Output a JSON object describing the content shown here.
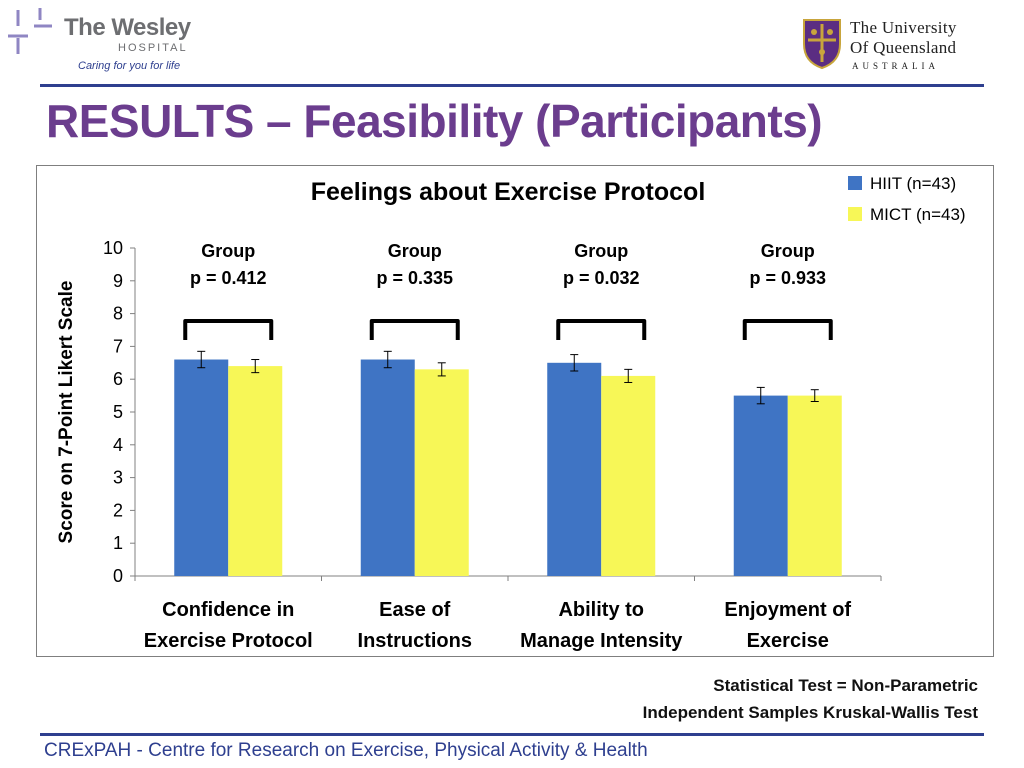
{
  "header": {
    "wesley_name": "The Wesley",
    "wesley_sub": "HOSPITAL",
    "wesley_tagline": "Caring for you for life",
    "uq_line1": "The University",
    "uq_line2": "Of Queensland",
    "uq_line3": "AUSTRALIA"
  },
  "slide_title": "RESULTS – Feasibility (Participants)",
  "chart_data": {
    "type": "bar",
    "title": "Feelings about Exercise Protocol",
    "ylabel": "Score on 7-Point Likert Scale",
    "xlabel": "",
    "ylim": [
      0,
      10
    ],
    "yticks": [
      "0",
      "1",
      "2",
      "3",
      "4",
      "5",
      "6",
      "7",
      "8",
      "9",
      "10"
    ],
    "categories": [
      [
        "Confidence in",
        "Exercise Protocol"
      ],
      [
        "Ease of",
        "Instructions"
      ],
      [
        "Ability to",
        "Manage Intensity"
      ],
      [
        "Enjoyment of",
        "Exercise"
      ]
    ],
    "series": [
      {
        "name": "HIIT (n=43)",
        "color": "#3f74c4",
        "values": [
          6.6,
          6.6,
          6.5,
          5.5
        ],
        "errors": [
          0.25,
          0.25,
          0.25,
          0.25
        ]
      },
      {
        "name": "MICT (n=43)",
        "color": "#f7f757",
        "values": [
          6.4,
          6.3,
          6.1,
          5.5
        ],
        "errors": [
          0.2,
          0.2,
          0.2,
          0.18
        ]
      }
    ],
    "annotations": [
      {
        "label": "Group",
        "p": "p = 0.412"
      },
      {
        "label": "Group",
        "p": "p = 0.335"
      },
      {
        "label": "Group",
        "p": "p = 0.032"
      },
      {
        "label": "Group",
        "p": "p = 0.933"
      }
    ],
    "legend_position": "top-right",
    "grid": false
  },
  "notes": {
    "line1": "Statistical Test = Non-Parametric",
    "line2": "Independent Samples Kruskal-Wallis Test"
  },
  "footer": "CRExPAH - Centre for Research on Exercise, Physical Activity & Health"
}
